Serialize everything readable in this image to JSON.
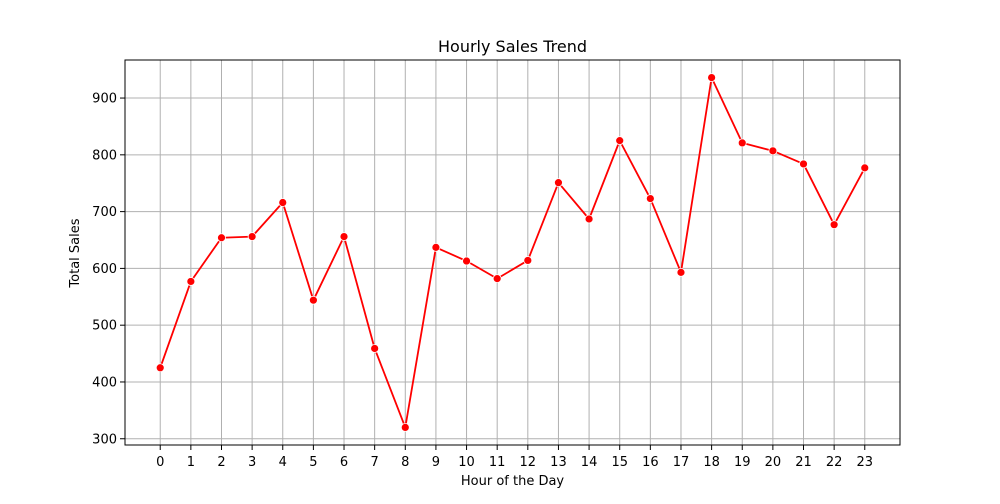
{
  "chart_data": {
    "type": "line",
    "title": "Hourly Sales Trend",
    "xlabel": "Hour of the Day",
    "ylabel": "Total Sales",
    "x": [
      0,
      1,
      2,
      3,
      4,
      5,
      6,
      7,
      8,
      9,
      10,
      11,
      12,
      13,
      14,
      15,
      16,
      17,
      18,
      19,
      20,
      21,
      22,
      23
    ],
    "series": [
      {
        "values": [
          425,
          577,
          654,
          656,
          716,
          544,
          656,
          459,
          320,
          637,
          613,
          582,
          614,
          751,
          687,
          825,
          723,
          593,
          936,
          821,
          807,
          784,
          677,
          777
        ],
        "color": "#ff0000"
      }
    ],
    "xlim": [
      -1.15,
      24.15
    ],
    "ylim": [
      289,
      967
    ],
    "x_ticks": [
      0,
      1,
      2,
      3,
      4,
      5,
      6,
      7,
      8,
      9,
      10,
      11,
      12,
      13,
      14,
      15,
      16,
      17,
      18,
      19,
      20,
      21,
      22,
      23
    ],
    "y_ticks": [
      300,
      400,
      500,
      600,
      700,
      800,
      900
    ],
    "grid": true,
    "marker": "circle"
  }
}
